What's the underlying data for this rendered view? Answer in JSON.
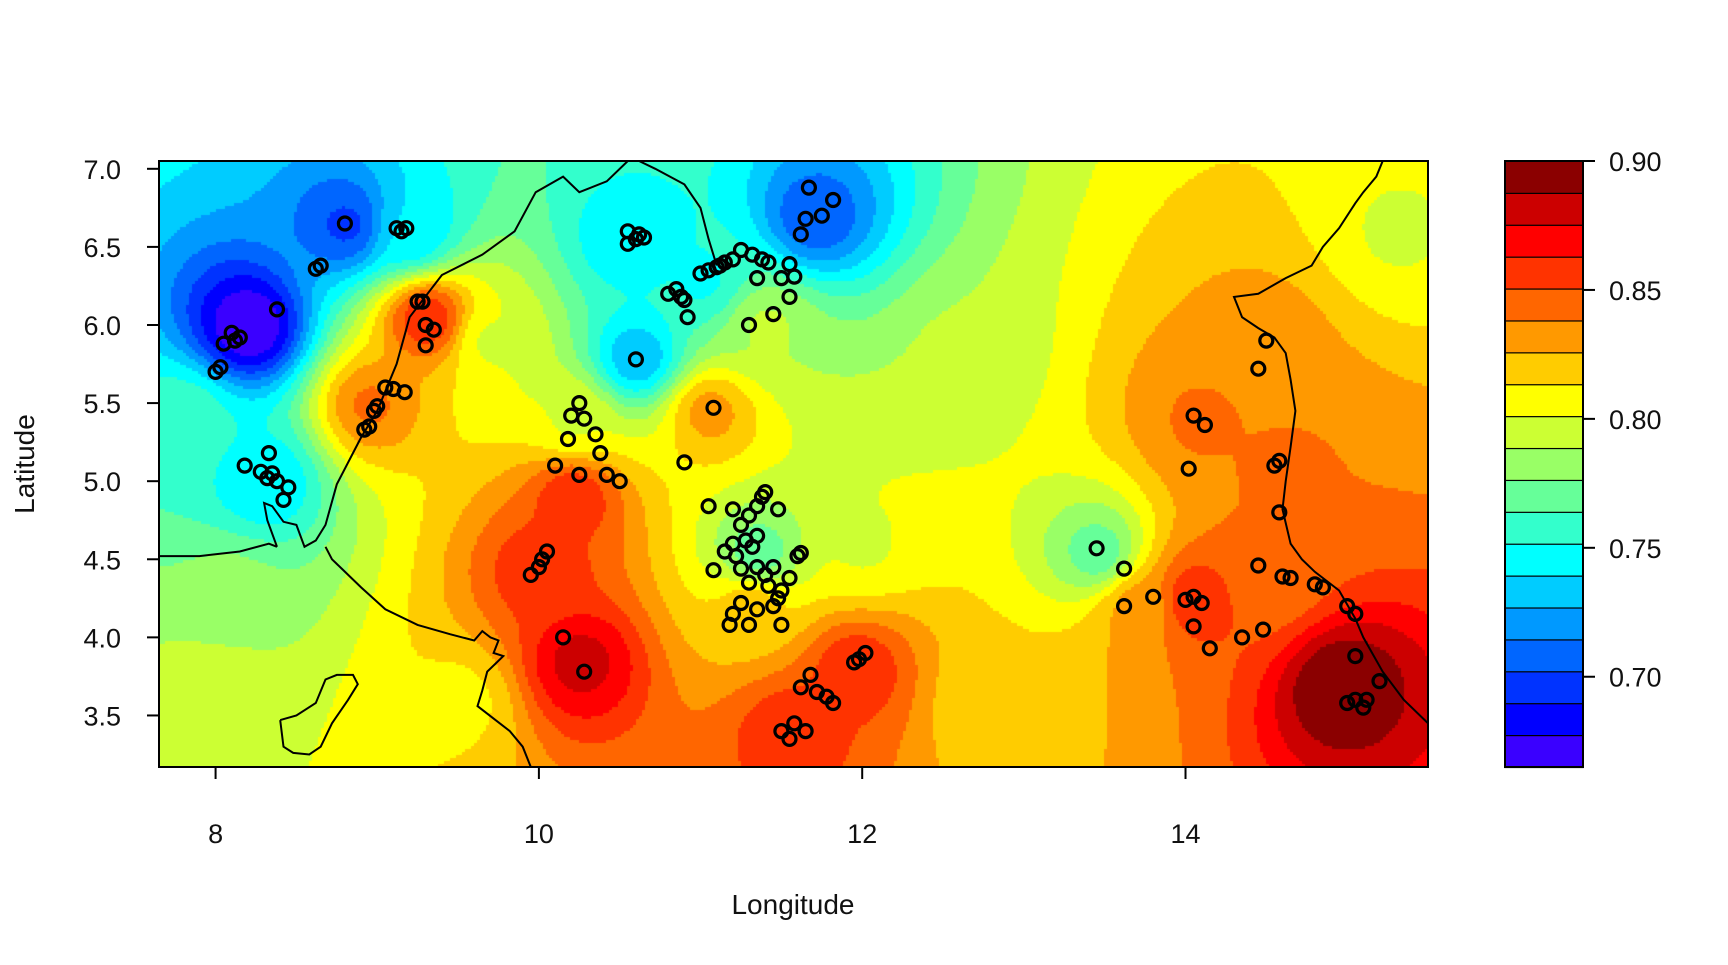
{
  "chart_data": {
    "type": "heatmap",
    "title": "",
    "xlabel": "Longitude",
    "ylabel": "Latitude",
    "xlim": [
      7.65,
      15.5
    ],
    "ylim": [
      3.17,
      7.05
    ],
    "x_ticks": [
      8,
      10,
      12,
      14
    ],
    "x_tick_labels": [
      "8",
      "10",
      "12",
      "14"
    ],
    "y_ticks": [
      3.5,
      4.0,
      4.5,
      5.0,
      5.5,
      6.0,
      6.5,
      7.0
    ],
    "y_tick_labels": [
      "3.5",
      "4.0",
      "4.5",
      "5.0",
      "5.5",
      "6.0",
      "6.5",
      "7.0"
    ],
    "colorbar": {
      "range": [
        0.665,
        0.9
      ],
      "ticks": [
        0.7,
        0.75,
        0.8,
        0.85,
        0.9
      ],
      "tick_labels": [
        "0.70",
        "0.75",
        "0.80",
        "0.85",
        "0.90"
      ],
      "colors": [
        "#3A00FF",
        "#0000FF",
        "#0033FF",
        "#0066FF",
        "#0099FF",
        "#00CCFF",
        "#00FFFF",
        "#33FFCC",
        "#66FF99",
        "#99FF66",
        "#CCFF33",
        "#FFFF00",
        "#FFCC00",
        "#FF9900",
        "#FF6600",
        "#FF3300",
        "#FF0000",
        "#CC0000",
        "#8B0000"
      ]
    },
    "surface_anchors": [
      {
        "lon": 8.2,
        "lat": 6.0,
        "value": 0.665
      },
      {
        "lon": 8.8,
        "lat": 6.65,
        "value": 0.7
      },
      {
        "lon": 8.3,
        "lat": 5.0,
        "value": 0.74
      },
      {
        "lon": 9.2,
        "lat": 6.6,
        "value": 0.74
      },
      {
        "lon": 10.55,
        "lat": 6.55,
        "value": 0.74
      },
      {
        "lon": 10.6,
        "lat": 5.8,
        "value": 0.73
      },
      {
        "lon": 11.0,
        "lat": 6.3,
        "value": 0.75
      },
      {
        "lon": 11.7,
        "lat": 6.7,
        "value": 0.705
      },
      {
        "lon": 9.3,
        "lat": 6.05,
        "value": 0.86
      },
      {
        "lon": 8.95,
        "lat": 5.5,
        "value": 0.84
      },
      {
        "lon": 10.2,
        "lat": 5.4,
        "value": 0.8
      },
      {
        "lon": 10.2,
        "lat": 4.9,
        "value": 0.86
      },
      {
        "lon": 10.25,
        "lat": 3.85,
        "value": 0.88
      },
      {
        "lon": 10.0,
        "lat": 4.45,
        "value": 0.86
      },
      {
        "lon": 11.05,
        "lat": 5.45,
        "value": 0.83
      },
      {
        "lon": 11.35,
        "lat": 4.55,
        "value": 0.77
      },
      {
        "lon": 11.3,
        "lat": 4.2,
        "value": 0.82
      },
      {
        "lon": 11.55,
        "lat": 3.4,
        "value": 0.86
      },
      {
        "lon": 11.95,
        "lat": 3.8,
        "value": 0.86
      },
      {
        "lon": 11.4,
        "lat": 6.0,
        "value": 0.79
      },
      {
        "lon": 13.45,
        "lat": 4.55,
        "value": 0.77
      },
      {
        "lon": 14.1,
        "lat": 5.4,
        "value": 0.84
      },
      {
        "lon": 14.05,
        "lat": 4.25,
        "value": 0.86
      },
      {
        "lon": 14.95,
        "lat": 3.7,
        "value": 0.9
      },
      {
        "lon": 14.5,
        "lat": 4.4,
        "value": 0.84
      },
      {
        "lon": 13.7,
        "lat": 4.2,
        "value": 0.83
      },
      {
        "lon": 14.5,
        "lat": 5.9,
        "value": 0.83
      },
      {
        "lon": 14.6,
        "lat": 5.1,
        "value": 0.84
      },
      {
        "lon": 12.6,
        "lat": 5.8,
        "value": 0.79
      },
      {
        "lon": 15.3,
        "lat": 6.6,
        "value": 0.8
      },
      {
        "lon": 12.8,
        "lat": 3.6,
        "value": 0.815
      },
      {
        "lon": 9.5,
        "lat": 3.6,
        "value": 0.81
      },
      {
        "lon": 8.0,
        "lat": 3.6,
        "value": 0.8
      },
      {
        "lon": 8.1,
        "lat": 4.3,
        "value": 0.78
      },
      {
        "lon": 7.8,
        "lat": 5.4,
        "value": 0.76
      },
      {
        "lon": 12.0,
        "lat": 4.6,
        "value": 0.8
      },
      {
        "lon": 9.7,
        "lat": 5.9,
        "value": 0.8
      }
    ],
    "stations": [
      [
        8.0,
        5.7
      ],
      [
        8.03,
        5.73
      ],
      [
        8.05,
        5.88
      ],
      [
        8.12,
        5.9
      ],
      [
        8.15,
        5.92
      ],
      [
        8.1,
        5.95
      ],
      [
        8.38,
        6.1
      ],
      [
        8.62,
        6.36
      ],
      [
        8.65,
        6.38
      ],
      [
        8.8,
        6.65
      ],
      [
        9.15,
        6.6
      ],
      [
        9.12,
        6.62
      ],
      [
        9.18,
        6.62
      ],
      [
        8.18,
        5.1
      ],
      [
        8.28,
        5.06
      ],
      [
        8.33,
        5.18
      ],
      [
        8.32,
        5.02
      ],
      [
        8.35,
        5.05
      ],
      [
        8.38,
        5.0
      ],
      [
        8.42,
        4.88
      ],
      [
        8.45,
        4.96
      ],
      [
        8.92,
        5.33
      ],
      [
        8.95,
        5.35
      ],
      [
        8.98,
        5.45
      ],
      [
        9.0,
        5.48
      ],
      [
        9.05,
        5.6
      ],
      [
        9.1,
        5.59
      ],
      [
        9.17,
        5.57
      ],
      [
        9.25,
        6.15
      ],
      [
        9.3,
        6.0
      ],
      [
        9.35,
        5.97
      ],
      [
        9.3,
        5.87
      ],
      [
        9.28,
        6.15
      ],
      [
        9.95,
        4.4
      ],
      [
        10.0,
        4.45
      ],
      [
        10.02,
        4.5
      ],
      [
        10.05,
        4.55
      ],
      [
        10.1,
        5.1
      ],
      [
        10.2,
        5.42
      ],
      [
        10.28,
        5.4
      ],
      [
        10.25,
        5.5
      ],
      [
        10.18,
        5.27
      ],
      [
        10.25,
        5.04
      ],
      [
        10.15,
        4.0
      ],
      [
        10.28,
        3.78
      ],
      [
        10.35,
        5.3
      ],
      [
        10.38,
        5.18
      ],
      [
        10.42,
        5.04
      ],
      [
        10.5,
        5.0
      ],
      [
        10.55,
        6.6
      ],
      [
        10.6,
        6.55
      ],
      [
        10.62,
        6.58
      ],
      [
        10.55,
        6.52
      ],
      [
        10.65,
        6.56
      ],
      [
        10.6,
        5.78
      ],
      [
        10.8,
        6.2
      ],
      [
        10.85,
        6.23
      ],
      [
        10.88,
        6.18
      ],
      [
        10.9,
        6.16
      ],
      [
        10.92,
        6.05
      ],
      [
        10.9,
        5.12
      ],
      [
        11.0,
        6.33
      ],
      [
        11.05,
        6.35
      ],
      [
        11.1,
        6.37
      ],
      [
        11.12,
        6.38
      ],
      [
        11.15,
        6.4
      ],
      [
        11.2,
        6.42
      ],
      [
        11.25,
        6.48
      ],
      [
        11.32,
        6.45
      ],
      [
        11.38,
        6.42
      ],
      [
        11.42,
        6.4
      ],
      [
        11.35,
        6.3
      ],
      [
        11.5,
        6.3
      ],
      [
        11.55,
        6.39
      ],
      [
        11.58,
        6.31
      ],
      [
        11.55,
        6.18
      ],
      [
        11.45,
        6.07
      ],
      [
        11.3,
        6.0
      ],
      [
        11.62,
        6.58
      ],
      [
        11.65,
        6.68
      ],
      [
        11.67,
        6.88
      ],
      [
        11.75,
        6.7
      ],
      [
        11.82,
        6.8
      ],
      [
        11.08,
        5.47
      ],
      [
        11.05,
        4.84
      ],
      [
        11.2,
        4.82
      ],
      [
        11.25,
        4.72
      ],
      [
        11.3,
        4.78
      ],
      [
        11.35,
        4.84
      ],
      [
        11.38,
        4.9
      ],
      [
        11.4,
        4.93
      ],
      [
        11.48,
        4.82
      ],
      [
        11.15,
        4.55
      ],
      [
        11.2,
        4.6
      ],
      [
        11.22,
        4.52
      ],
      [
        11.28,
        4.62
      ],
      [
        11.32,
        4.58
      ],
      [
        11.35,
        4.65
      ],
      [
        11.25,
        4.44
      ],
      [
        11.08,
        4.43
      ],
      [
        11.3,
        4.35
      ],
      [
        11.35,
        4.45
      ],
      [
        11.4,
        4.4
      ],
      [
        11.42,
        4.33
      ],
      [
        11.45,
        4.45
      ],
      [
        11.5,
        4.3
      ],
      [
        11.55,
        4.38
      ],
      [
        11.48,
        4.25
      ],
      [
        11.2,
        4.15
      ],
      [
        11.25,
        4.22
      ],
      [
        11.35,
        4.18
      ],
      [
        11.45,
        4.2
      ],
      [
        11.3,
        4.08
      ],
      [
        11.5,
        4.08
      ],
      [
        11.18,
        4.08
      ],
      [
        11.6,
        4.52
      ],
      [
        11.62,
        4.54
      ],
      [
        11.5,
        3.4
      ],
      [
        11.55,
        3.35
      ],
      [
        11.58,
        3.45
      ],
      [
        11.65,
        3.4
      ],
      [
        11.62,
        3.68
      ],
      [
        11.68,
        3.76
      ],
      [
        11.72,
        3.65
      ],
      [
        11.78,
        3.62
      ],
      [
        11.82,
        3.58
      ],
      [
        11.95,
        3.84
      ],
      [
        11.98,
        3.86
      ],
      [
        12.02,
        3.9
      ],
      [
        13.45,
        4.57
      ],
      [
        13.62,
        4.44
      ],
      [
        13.62,
        4.2
      ],
      [
        13.8,
        4.26
      ],
      [
        14.0,
        4.24
      ],
      [
        14.05,
        4.26
      ],
      [
        14.1,
        4.22
      ],
      [
        14.05,
        4.07
      ],
      [
        14.15,
        3.93
      ],
      [
        14.05,
        5.42
      ],
      [
        14.12,
        5.36
      ],
      [
        14.02,
        5.08
      ],
      [
        14.35,
        4.0
      ],
      [
        14.45,
        4.46
      ],
      [
        14.48,
        4.05
      ],
      [
        14.6,
        4.39
      ],
      [
        14.65,
        4.38
      ],
      [
        14.8,
        4.34
      ],
      [
        14.85,
        4.32
      ],
      [
        14.45,
        5.72
      ],
      [
        14.5,
        5.9
      ],
      [
        14.55,
        5.1
      ],
      [
        14.58,
        5.13
      ],
      [
        14.58,
        4.8
      ],
      [
        15.0,
        4.2
      ],
      [
        15.05,
        4.15
      ],
      [
        15.05,
        3.88
      ],
      [
        15.0,
        3.58
      ],
      [
        15.05,
        3.6
      ],
      [
        15.1,
        3.55
      ],
      [
        15.12,
        3.6
      ],
      [
        15.2,
        3.72
      ]
    ],
    "boundaries": [
      [
        [
          7.65,
          4.52
        ],
        [
          7.9,
          4.52
        ],
        [
          8.15,
          4.55
        ],
        [
          8.33,
          4.6
        ],
        [
          8.38,
          4.58
        ]
      ],
      [
        [
          8.38,
          4.58
        ],
        [
          8.32,
          4.75
        ],
        [
          8.3,
          4.86
        ],
        [
          8.35,
          4.84
        ],
        [
          8.42,
          4.74
        ],
        [
          8.5,
          4.72
        ],
        [
          8.55,
          4.58
        ],
        [
          8.62,
          4.62
        ],
        [
          8.68,
          4.72
        ],
        [
          8.75,
          4.98
        ],
        [
          8.9,
          5.28
        ],
        [
          9.0,
          5.45
        ],
        [
          9.12,
          5.75
        ],
        [
          9.2,
          6.05
        ],
        [
          9.4,
          6.32
        ],
        [
          9.65,
          6.45
        ],
        [
          9.85,
          6.6
        ],
        [
          9.98,
          6.85
        ],
        [
          10.15,
          6.95
        ],
        [
          10.25,
          6.85
        ],
        [
          10.42,
          6.92
        ],
        [
          10.55,
          7.05
        ]
      ],
      [
        [
          8.68,
          4.58
        ],
        [
          8.72,
          4.5
        ],
        [
          8.78,
          4.44
        ],
        [
          8.9,
          4.32
        ],
        [
          9.05,
          4.18
        ],
        [
          9.25,
          4.08
        ],
        [
          9.45,
          4.02
        ],
        [
          9.6,
          3.98
        ],
        [
          9.65,
          4.04
        ],
        [
          9.7,
          4.0
        ],
        [
          9.75,
          3.98
        ],
        [
          9.72,
          3.9
        ],
        [
          9.78,
          3.88
        ],
        [
          9.68,
          3.78
        ],
        [
          9.65,
          3.66
        ],
        [
          9.62,
          3.56
        ],
        [
          9.72,
          3.48
        ],
        [
          9.82,
          3.4
        ],
        [
          9.9,
          3.3
        ],
        [
          9.95,
          3.17
        ]
      ],
      [
        [
          8.4,
          3.47
        ],
        [
          8.5,
          3.5
        ],
        [
          8.62,
          3.58
        ],
        [
          8.68,
          3.73
        ],
        [
          8.75,
          3.76
        ],
        [
          8.85,
          3.76
        ],
        [
          8.88,
          3.7
        ],
        [
          8.82,
          3.6
        ],
        [
          8.72,
          3.45
        ],
        [
          8.65,
          3.3
        ],
        [
          8.58,
          3.25
        ],
        [
          8.48,
          3.26
        ],
        [
          8.42,
          3.3
        ],
        [
          8.4,
          3.47
        ]
      ],
      [
        [
          10.62,
          7.05
        ],
        [
          10.72,
          7.0
        ],
        [
          10.9,
          6.9
        ],
        [
          11.0,
          6.75
        ],
        [
          11.05,
          6.55
        ],
        [
          11.1,
          6.38
        ]
      ],
      [
        [
          15.5,
          3.45
        ],
        [
          15.35,
          3.6
        ],
        [
          15.22,
          3.78
        ],
        [
          15.1,
          4.0
        ],
        [
          15.05,
          4.12
        ],
        [
          14.95,
          4.3
        ],
        [
          14.8,
          4.42
        ],
        [
          14.72,
          4.5
        ],
        [
          14.65,
          4.6
        ],
        [
          14.6,
          4.82
        ],
        [
          14.62,
          5.0
        ],
        [
          14.65,
          5.22
        ],
        [
          14.68,
          5.45
        ],
        [
          14.65,
          5.65
        ],
        [
          14.62,
          5.82
        ],
        [
          14.55,
          5.92
        ],
        [
          14.45,
          5.98
        ],
        [
          14.35,
          6.05
        ],
        [
          14.3,
          6.18
        ],
        [
          14.45,
          6.2
        ],
        [
          14.62,
          6.3
        ],
        [
          14.78,
          6.38
        ],
        [
          14.85,
          6.5
        ],
        [
          14.95,
          6.62
        ],
        [
          15.05,
          6.78
        ],
        [
          15.1,
          6.85
        ],
        [
          15.18,
          6.95
        ],
        [
          15.22,
          7.05
        ]
      ]
    ]
  }
}
